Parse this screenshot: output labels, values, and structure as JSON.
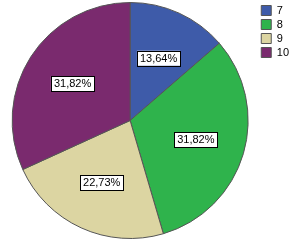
{
  "chart_data": {
    "type": "pie",
    "categories": [
      "7",
      "8",
      "9",
      "10"
    ],
    "values": [
      13.64,
      31.82,
      22.73,
      31.82
    ],
    "value_labels": [
      "13,64%",
      "31,82%",
      "22,73%",
      "31,82%"
    ],
    "colors": [
      "#3e5ba9",
      "#2fb34c",
      "#dcd5a2",
      "#7a2a6e"
    ],
    "legend": "top right",
    "data_labels": true
  }
}
